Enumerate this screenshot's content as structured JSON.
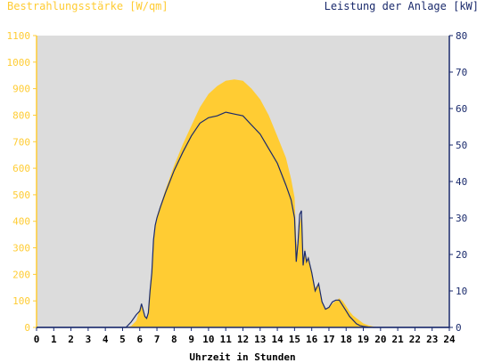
{
  "chart_data": {
    "type": "area",
    "left_axis_label": "Bestrahlungsstärke [W/qm]",
    "right_axis_label": "Leistung der Anlage [kW]",
    "xlabel": "Uhrzeit in Stunden",
    "x_ticks": [
      "0",
      "1",
      "2",
      "3",
      "4",
      "5",
      "6",
      "7",
      "8",
      "9",
      "10",
      "11",
      "12",
      "13",
      "14",
      "15",
      "16",
      "17",
      "18",
      "19",
      "20",
      "21",
      "22",
      "23",
      "24"
    ],
    "left_ticks": [
      "0",
      "100",
      "200",
      "300",
      "400",
      "500",
      "600",
      "700",
      "800",
      "900",
      "1000",
      "1100"
    ],
    "right_ticks": [
      "0",
      "10",
      "20",
      "30",
      "40",
      "50",
      "60",
      "70",
      "80"
    ],
    "xlim": [
      0,
      24
    ],
    "ylim_left": [
      0,
      1100
    ],
    "ylim_right": [
      0,
      80
    ],
    "grid": false,
    "colors": {
      "background": "#dcdcdc",
      "irradiance_fill": "#ffcc33",
      "power_line": "#1a2a6c",
      "left_axis": "#ffcc33",
      "right_axis": "#1a2a6c",
      "xaxis": "#000000"
    },
    "series": [
      {
        "axis": "left",
        "x": [
          5.2,
          5.5,
          5.8,
          6.0,
          6.1,
          6.3,
          6.4,
          6.5,
          6.6,
          6.7,
          6.8,
          6.9,
          7.0,
          7.2,
          7.5,
          8.0,
          8.5,
          9.0,
          9.5,
          10.0,
          10.5,
          11.0,
          11.5,
          12.0,
          12.5,
          13.0,
          13.5,
          14.0,
          14.5,
          14.8,
          15.0,
          15.1,
          15.2,
          15.3,
          15.4,
          15.5,
          15.6,
          15.7,
          15.8,
          16.0,
          16.2,
          16.4,
          16.6,
          16.8,
          17.0,
          17.2,
          17.4,
          17.6,
          17.8,
          18.0,
          18.2,
          18.4,
          18.6,
          18.8,
          19.0,
          19.3,
          19.6,
          20.0,
          20.3
        ],
        "values": [
          0,
          5,
          25,
          70,
          90,
          40,
          35,
          60,
          140,
          200,
          330,
          380,
          420,
          460,
          520,
          610,
          690,
          760,
          830,
          880,
          910,
          930,
          935,
          930,
          900,
          860,
          800,
          720,
          640,
          560,
          490,
          330,
          280,
          390,
          420,
          250,
          300,
          240,
          270,
          210,
          150,
          160,
          95,
          70,
          75,
          90,
          100,
          110,
          100,
          80,
          60,
          45,
          35,
          25,
          15,
          8,
          3,
          0,
          0
        ]
      },
      {
        "axis": "right",
        "x": [
          5.2,
          5.5,
          5.8,
          6.0,
          6.1,
          6.3,
          6.4,
          6.5,
          6.6,
          6.7,
          6.8,
          6.9,
          7.0,
          7.2,
          7.5,
          8.0,
          8.5,
          9.0,
          9.5,
          10.0,
          10.5,
          11.0,
          11.5,
          12.0,
          12.5,
          13.0,
          13.5,
          14.0,
          14.5,
          14.8,
          15.0,
          15.1,
          15.2,
          15.3,
          15.4,
          15.5,
          15.6,
          15.7,
          15.8,
          16.0,
          16.2,
          16.4,
          16.6,
          16.8,
          17.0,
          17.2,
          17.4,
          17.6,
          17.8,
          18.0,
          18.2,
          18.4,
          18.6,
          18.8,
          19.0,
          19.3,
          19.6,
          20.0,
          20.3
        ],
        "values": [
          0,
          1.5,
          3.5,
          4.5,
          6.5,
          3.0,
          2.5,
          4.0,
          10.0,
          15.0,
          24.0,
          28.0,
          30.0,
          33.0,
          37.0,
          43.0,
          48.0,
          52.5,
          56.0,
          57.5,
          58.0,
          59.0,
          58.5,
          58.0,
          55.5,
          53.0,
          49.0,
          45.0,
          39.0,
          35.0,
          30.0,
          18.0,
          23.0,
          31.0,
          32.0,
          17.0,
          21.0,
          18.0,
          19.0,
          15.0,
          10.0,
          12.0,
          7.0,
          5.0,
          5.5,
          7.0,
          7.5,
          7.5,
          6.0,
          4.5,
          3.0,
          2.0,
          1.0,
          0.5,
          0.3,
          0.1,
          0,
          0,
          0
        ]
      }
    ]
  }
}
